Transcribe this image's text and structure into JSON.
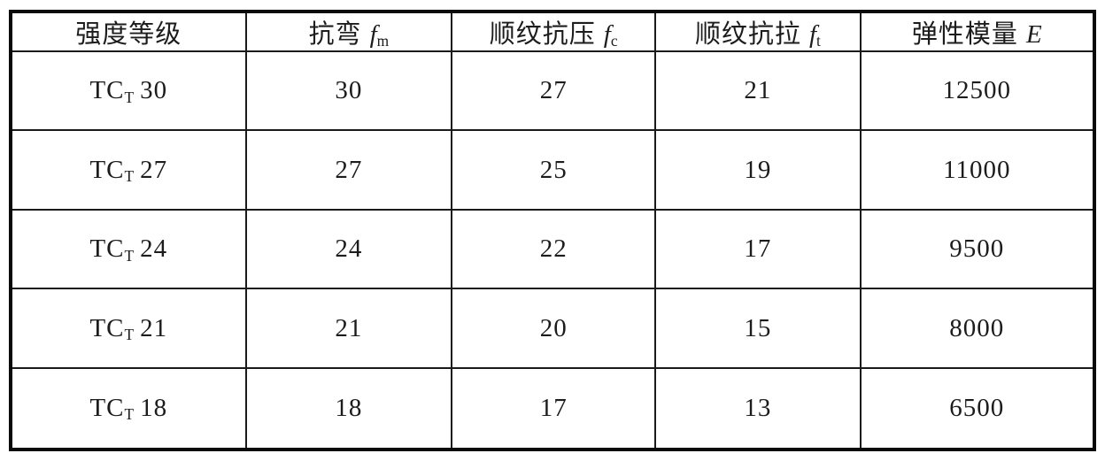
{
  "table": {
    "title_semantic": "timber strength grade design values",
    "columns": [
      {
        "label": "强度等级",
        "symbol": "",
        "sub": ""
      },
      {
        "label": "抗弯",
        "symbol": "f",
        "sub": "m"
      },
      {
        "label": "顺纹抗压",
        "symbol": "f",
        "sub": "c"
      },
      {
        "label": "顺纹抗拉",
        "symbol": "f",
        "sub": "t"
      },
      {
        "label": "弹性模量",
        "symbol": "E",
        "sub": ""
      }
    ],
    "rows": [
      {
        "grade": {
          "prefix": "TC",
          "sub": "T",
          "number": "30"
        },
        "values": [
          "30",
          "27",
          "21",
          "12500"
        ]
      },
      {
        "grade": {
          "prefix": "TC",
          "sub": "T",
          "number": "27"
        },
        "values": [
          "27",
          "25",
          "19",
          "11000"
        ]
      },
      {
        "grade": {
          "prefix": "TC",
          "sub": "T",
          "number": "24"
        },
        "values": [
          "24",
          "22",
          "17",
          "9500"
        ]
      },
      {
        "grade": {
          "prefix": "TC",
          "sub": "T",
          "number": "21"
        },
        "values": [
          "21",
          "20",
          "15",
          "8000"
        ]
      },
      {
        "grade": {
          "prefix": "TC",
          "sub": "T",
          "number": "18"
        },
        "values": [
          "18",
          "17",
          "13",
          "6500"
        ]
      }
    ]
  },
  "colors": {
    "background": "#ffffff",
    "text": "#1c1c1c",
    "border": "#0a0a0a"
  }
}
